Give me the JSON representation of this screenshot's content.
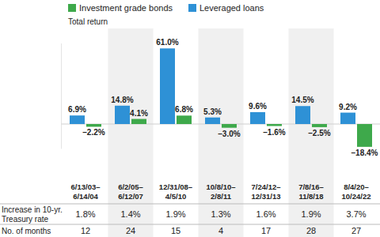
{
  "chart_data": {
    "type": "bar",
    "ylabel": "Total return",
    "categories": [
      "6/13/03–6/14/04",
      "6/2/05–6/12/07",
      "12/31/08–4/5/10",
      "10/8/10–2/8/11",
      "7/24/12–12/31/13",
      "7/8/16–11/8/18",
      "8/4/20–10/24/22"
    ],
    "series": [
      {
        "name": "Investment grade bonds",
        "color": "#3ea94b",
        "values": [
          -2.2,
          4.1,
          6.8,
          -3.0,
          -1.6,
          -2.5,
          -18.4
        ],
        "value_labels": [
          "–2.2%",
          "4.1%",
          "6.8%",
          "–3.0%",
          "–1.6%",
          "–2.5%",
          "–18.4%"
        ]
      },
      {
        "name": "Leveraged loans",
        "color": "#2e91d6",
        "values": [
          6.9,
          14.8,
          61.0,
          5.3,
          9.6,
          14.5,
          9.2
        ],
        "value_labels": [
          "6.9%",
          "14.8%",
          "61.0%",
          "5.3%",
          "9.6%",
          "14.5%",
          "9.2%"
        ]
      }
    ],
    "ylim": [
      -20,
      65
    ],
    "yticks": [
      0
    ],
    "tick_labels": false,
    "data_labels": true,
    "legend": "top",
    "grid": false
  },
  "table": {
    "rows": [
      {
        "label": "Increase in 10-yr. Treasury rate",
        "values": [
          "1.8%",
          "1.4%",
          "1.9%",
          "1.3%",
          "1.6%",
          "1.9%",
          "3.7%"
        ]
      },
      {
        "label": "No. of months",
        "values": [
          "12",
          "24",
          "15",
          "4",
          "17",
          "28",
          "27"
        ]
      }
    ]
  }
}
